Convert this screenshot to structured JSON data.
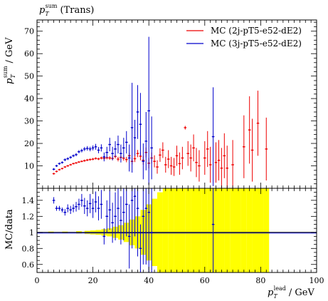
{
  "chart_data": [
    {
      "type": "scatter",
      "panel": "main",
      "title": "p_T^sum (Trans)",
      "title_parts": {
        "symbol": "p",
        "sub": "T",
        "sup": "sum",
        "rest": "(Trans)"
      },
      "ylabel": "p_T^sum / GeV",
      "ylabel_parts": {
        "symbol": "p",
        "sub": "T",
        "sup": "sum",
        "unit": "/ GeV"
      },
      "xlim": [
        0,
        100
      ],
      "ylim": [
        0,
        75
      ],
      "x_ticks": [
        0,
        20,
        40,
        60,
        80,
        100
      ],
      "y_ticks": [
        10,
        20,
        30,
        40,
        50,
        60,
        70
      ],
      "y_tick_labels": [
        "10",
        "20",
        "30",
        "40",
        "50",
        "60",
        "70"
      ],
      "legend_position": "top-right",
      "series": [
        {
          "name": "MC (2j-pT5-e52-dE2)",
          "color": "#ee0000",
          "points": [
            {
              "x": 6,
              "y": 6.5,
              "e": 0.4
            },
            {
              "x": 7,
              "y": 7.5,
              "e": 0.4
            },
            {
              "x": 8,
              "y": 8.3,
              "e": 0.4
            },
            {
              "x": 9,
              "y": 8.8,
              "e": 0.4
            },
            {
              "x": 10,
              "y": 9.5,
              "e": 0.4
            },
            {
              "x": 11,
              "y": 10.0,
              "e": 0.4
            },
            {
              "x": 12,
              "y": 10.5,
              "e": 0.4
            },
            {
              "x": 13,
              "y": 11.0,
              "e": 0.4
            },
            {
              "x": 14,
              "y": 11.3,
              "e": 0.4
            },
            {
              "x": 15,
              "y": 11.7,
              "e": 0.4
            },
            {
              "x": 16,
              "y": 12.0,
              "e": 0.4
            },
            {
              "x": 17,
              "y": 12.3,
              "e": 0.5
            },
            {
              "x": 18,
              "y": 12.6,
              "e": 0.5
            },
            {
              "x": 19,
              "y": 12.8,
              "e": 0.5
            },
            {
              "x": 20,
              "y": 13.0,
              "e": 0.5
            },
            {
              "x": 21,
              "y": 13.3,
              "e": 0.5
            },
            {
              "x": 22,
              "y": 13.1,
              "e": 0.5
            },
            {
              "x": 23,
              "y": 13.5,
              "e": 0.6
            },
            {
              "x": 24,
              "y": 13.4,
              "e": 0.7
            },
            {
              "x": 25,
              "y": 13.6,
              "e": 0.7
            },
            {
              "x": 26,
              "y": 13.5,
              "e": 0.8
            },
            {
              "x": 27,
              "y": 13.3,
              "e": 0.8
            },
            {
              "x": 28,
              "y": 14.2,
              "e": 0.9
            },
            {
              "x": 29,
              "y": 13.0,
              "e": 1.0
            },
            {
              "x": 30,
              "y": 13.8,
              "e": 1.0
            },
            {
              "x": 31,
              "y": 13.4,
              "e": 1.1
            },
            {
              "x": 32,
              "y": 12.8,
              "e": 1.2
            },
            {
              "x": 33,
              "y": 14.5,
              "e": 1.3
            },
            {
              "x": 34,
              "y": 12.0,
              "e": 1.4
            },
            {
              "x": 35,
              "y": 13.2,
              "e": 1.5
            },
            {
              "x": 36,
              "y": 15.5,
              "e": 1.6
            },
            {
              "x": 37,
              "y": 14.3,
              "e": 1.8
            },
            {
              "x": 38,
              "y": 12.5,
              "e": 2.0
            },
            {
              "x": 39,
              "y": 16.0,
              "e": 2.2
            },
            {
              "x": 40,
              "y": 11.2,
              "e": 2.3
            },
            {
              "x": 41,
              "y": 13.5,
              "e": 2.5
            },
            {
              "x": 42,
              "y": 12.0,
              "e": 2.7
            },
            {
              "x": 43,
              "y": 9.5,
              "e": 3.0
            },
            {
              "x": 44,
              "y": 14.8,
              "e": 3.0
            },
            {
              "x": 45,
              "y": 17.0,
              "e": 3.5
            },
            {
              "x": 46,
              "y": 10.5,
              "e": 3.5
            },
            {
              "x": 47,
              "y": 13.0,
              "e": 4.0
            },
            {
              "x": 48,
              "y": 10.0,
              "e": 4.0
            },
            {
              "x": 49,
              "y": 9.5,
              "e": 4.0
            },
            {
              "x": 50,
              "y": 14.5,
              "e": 4.5
            },
            {
              "x": 51,
              "y": 11.0,
              "e": 5.0
            },
            {
              "x": 52,
              "y": 13.5,
              "e": 5.0
            },
            {
              "x": 53,
              "y": 27.0,
              "e": 0.8
            },
            {
              "x": 54,
              "y": 15.5,
              "e": 5.5
            },
            {
              "x": 55,
              "y": 13.5,
              "e": 6.0
            },
            {
              "x": 56,
              "y": 18.0,
              "e": 6.0
            },
            {
              "x": 57,
              "y": 11.5,
              "e": 6.5
            },
            {
              "x": 58,
              "y": 10.0,
              "e": 7.0
            },
            {
              "x": 60,
              "y": 13.5,
              "e": 7.5
            },
            {
              "x": 61,
              "y": 17.5,
              "e": 8.0
            },
            {
              "x": 62,
              "y": 10.5,
              "e": 8.0
            },
            {
              "x": 64,
              "y": 11.5,
              "e": 9.0
            },
            {
              "x": 65,
              "y": 12.5,
              "e": 9.0
            },
            {
              "x": 66,
              "y": 9.0,
              "e": 9.0
            },
            {
              "x": 67,
              "y": 14.5,
              "e": 10.0
            },
            {
              "x": 68,
              "y": 9.0,
              "e": 10.0
            },
            {
              "x": 70,
              "y": 10.5,
              "e": 11.0
            },
            {
              "x": 74,
              "y": 18.5,
              "e": 14.0
            },
            {
              "x": 76,
              "y": 26.0,
              "e": 15.0
            },
            {
              "x": 77,
              "y": 17.0,
              "e": 14.0
            },
            {
              "x": 79,
              "y": 29.0,
              "e": 14.5
            },
            {
              "x": 82,
              "y": 17.5,
              "e": 14.0
            }
          ]
        },
        {
          "name": "MC (3j-pT5-e52-dE2)",
          "color": "#0000cc",
          "points": [
            {
              "x": 6,
              "y": 8.5,
              "e": 0.5
            },
            {
              "x": 7,
              "y": 10.0,
              "e": 0.5
            },
            {
              "x": 8,
              "y": 11.0,
              "e": 0.5
            },
            {
              "x": 9,
              "y": 11.5,
              "e": 0.5
            },
            {
              "x": 10,
              "y": 12.7,
              "e": 0.6
            },
            {
              "x": 11,
              "y": 13.2,
              "e": 0.6
            },
            {
              "x": 12,
              "y": 13.8,
              "e": 0.6
            },
            {
              "x": 13,
              "y": 14.5,
              "e": 0.6
            },
            {
              "x": 14,
              "y": 15.0,
              "e": 0.7
            },
            {
              "x": 15,
              "y": 16.3,
              "e": 0.7
            },
            {
              "x": 16,
              "y": 16.8,
              "e": 0.8
            },
            {
              "x": 17,
              "y": 17.5,
              "e": 0.9
            },
            {
              "x": 18,
              "y": 17.8,
              "e": 1.0
            },
            {
              "x": 19,
              "y": 17.5,
              "e": 1.0
            },
            {
              "x": 20,
              "y": 18.0,
              "e": 1.1
            },
            {
              "x": 21,
              "y": 18.5,
              "e": 1.3
            },
            {
              "x": 22,
              "y": 17.0,
              "e": 1.4
            },
            {
              "x": 23,
              "y": 18.0,
              "e": 1.6
            },
            {
              "x": 24,
              "y": 14.0,
              "e": 2.0
            },
            {
              "x": 25,
              "y": 16.0,
              "e": 2.5
            },
            {
              "x": 26,
              "y": 19.5,
              "e": 3.0
            },
            {
              "x": 27,
              "y": 15.5,
              "e": 3.0
            },
            {
              "x": 28,
              "y": 17.5,
              "e": 3.5
            },
            {
              "x": 29,
              "y": 19.5,
              "e": 4.0
            },
            {
              "x": 30,
              "y": 15.5,
              "e": 4.0
            },
            {
              "x": 31,
              "y": 18.0,
              "e": 4.5
            },
            {
              "x": 32,
              "y": 20.5,
              "e": 5.0
            },
            {
              "x": 33,
              "y": 13.5,
              "e": 6.0
            },
            {
              "x": 34,
              "y": 27.0,
              "e": 20.0
            },
            {
              "x": 35,
              "y": 22.5,
              "e": 8.0
            },
            {
              "x": 36,
              "y": 34.0,
              "e": 12.0
            },
            {
              "x": 37,
              "y": 28.5,
              "e": 14.0
            },
            {
              "x": 38,
              "y": 12.0,
              "e": 8.0
            },
            {
              "x": 39,
              "y": 21.0,
              "e": 13.0
            },
            {
              "x": 40,
              "y": 34.5,
              "e": 33.0
            },
            {
              "x": 41,
              "y": 18.0,
              "e": 14.0
            },
            {
              "x": 63,
              "y": 23.0,
              "e": 22.0
            }
          ]
        }
      ]
    },
    {
      "type": "scatter",
      "panel": "ratio",
      "ylabel": "MC/data",
      "xlabel": "p_T^lead / GeV",
      "xlabel_parts": {
        "symbol": "p",
        "sub": "T",
        "sup": "lead",
        "unit": "/ GeV"
      },
      "xlim": [
        0,
        100
      ],
      "ylim": [
        0.5,
        1.55
      ],
      "x_ticks": [
        0,
        20,
        40,
        60,
        80,
        100
      ],
      "x_tick_labels": [
        "0",
        "20",
        "40",
        "60",
        "80",
        "100"
      ],
      "y_ticks": [
        0.6,
        0.8,
        1,
        1.2,
        1.4
      ],
      "y_tick_labels": [
        "0.6",
        "0.8",
        "1",
        "1.2",
        "1.4"
      ],
      "reference_line": 1.0,
      "band_color": "#ffff00",
      "band": [
        {
          "x": 5,
          "e": 0.01
        },
        {
          "x": 10,
          "e": 0.01
        },
        {
          "x": 15,
          "e": 0.015
        },
        {
          "x": 18,
          "e": 0.02
        },
        {
          "x": 20,
          "e": 0.025
        },
        {
          "x": 22,
          "e": 0.03
        },
        {
          "x": 24,
          "e": 0.04
        },
        {
          "x": 26,
          "e": 0.05
        },
        {
          "x": 28,
          "e": 0.07
        },
        {
          "x": 30,
          "e": 0.09
        },
        {
          "x": 32,
          "e": 0.12
        },
        {
          "x": 34,
          "e": 0.16
        },
        {
          "x": 36,
          "e": 0.2
        },
        {
          "x": 38,
          "e": 0.28
        },
        {
          "x": 40,
          "e": 0.35
        },
        {
          "x": 42,
          "e": 0.42
        },
        {
          "x": 44,
          "e": 0.5
        },
        {
          "x": 46,
          "e": 0.6
        },
        {
          "x": 48,
          "e": 0.55
        },
        {
          "x": 50,
          "e": 0.7
        },
        {
          "x": 52,
          "e": 0.6
        },
        {
          "x": 54,
          "e": 0.8
        },
        {
          "x": 56,
          "e": 0.7
        },
        {
          "x": 58,
          "e": 0.8
        },
        {
          "x": 60,
          "e": 0.8
        },
        {
          "x": 62,
          "e": 0.8
        },
        {
          "x": 64,
          "e": 0.8
        },
        {
          "x": 66,
          "e": 0.8
        },
        {
          "x": 68,
          "e": 0.8
        },
        {
          "x": 70,
          "e": 0.8
        },
        {
          "x": 72,
          "e": 0.8
        },
        {
          "x": 74,
          "e": 0.8
        },
        {
          "x": 76,
          "e": 0.8
        },
        {
          "x": 78,
          "e": 0.8
        },
        {
          "x": 80,
          "e": 0.8
        },
        {
          "x": 82,
          "e": 0.8
        }
      ],
      "series": [
        {
          "name": "MC (3j-pT5-e52-dE2)",
          "color": "#0000cc",
          "points": [
            {
              "x": 6,
              "y": 1.4,
              "e": 0.04
            },
            {
              "x": 7,
              "y": 1.3,
              "e": 0.03
            },
            {
              "x": 8,
              "y": 1.3,
              "e": 0.03
            },
            {
              "x": 9,
              "y": 1.28,
              "e": 0.03
            },
            {
              "x": 10,
              "y": 1.25,
              "e": 0.04
            },
            {
              "x": 11,
              "y": 1.3,
              "e": 0.05
            },
            {
              "x": 12,
              "y": 1.28,
              "e": 0.05
            },
            {
              "x": 13,
              "y": 1.3,
              "e": 0.05
            },
            {
              "x": 14,
              "y": 1.32,
              "e": 0.06
            },
            {
              "x": 15,
              "y": 1.35,
              "e": 0.07
            },
            {
              "x": 16,
              "y": 1.4,
              "e": 0.08
            },
            {
              "x": 17,
              "y": 1.33,
              "e": 0.1
            },
            {
              "x": 18,
              "y": 1.3,
              "e": 0.1
            },
            {
              "x": 19,
              "y": 1.36,
              "e": 0.12
            },
            {
              "x": 20,
              "y": 1.3,
              "e": 0.12
            },
            {
              "x": 21,
              "y": 1.38,
              "e": 0.13
            },
            {
              "x": 22,
              "y": 1.3,
              "e": 0.15
            },
            {
              "x": 23,
              "y": 1.35,
              "e": 0.18
            },
            {
              "x": 24,
              "y": 0.95,
              "e": 0.1
            },
            {
              "x": 25,
              "y": 1.2,
              "e": 0.2
            },
            {
              "x": 26,
              "y": 1.28,
              "e": 0.25
            },
            {
              "x": 27,
              "y": 1.12,
              "e": 0.25
            },
            {
              "x": 28,
              "y": 1.2,
              "e": 0.3
            },
            {
              "x": 29,
              "y": 1.3,
              "e": 0.3
            },
            {
              "x": 30,
              "y": 1.15,
              "e": 0.3
            },
            {
              "x": 31,
              "y": 1.25,
              "e": 0.35
            },
            {
              "x": 32,
              "y": 1.35,
              "e": 0.4
            },
            {
              "x": 33,
              "y": 0.95,
              "e": 0.4
            },
            {
              "x": 34,
              "y": 1.4,
              "e": 0.6
            },
            {
              "x": 35,
              "y": 1.45,
              "e": 0.5
            },
            {
              "x": 36,
              "y": 1.3,
              "e": 0.6
            },
            {
              "x": 37,
              "y": 0.8,
              "e": 0.3
            },
            {
              "x": 38,
              "y": 1.2,
              "e": 0.6
            },
            {
              "x": 39,
              "y": 1.3,
              "e": 0.7
            },
            {
              "x": 40,
              "y": 1.25,
              "e": 0.8
            },
            {
              "x": 41,
              "y": 1.0,
              "e": 0.6
            },
            {
              "x": 63,
              "y": 1.1,
              "e": 0.9
            }
          ]
        }
      ]
    }
  ]
}
